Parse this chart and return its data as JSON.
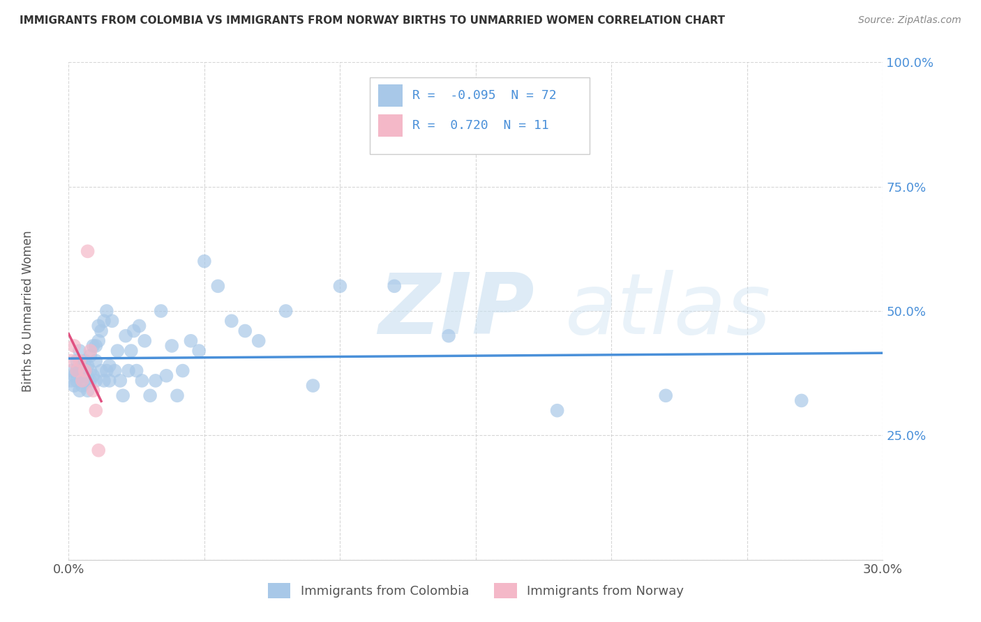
{
  "title": "IMMIGRANTS FROM COLOMBIA VS IMMIGRANTS FROM NORWAY BIRTHS TO UNMARRIED WOMEN CORRELATION CHART",
  "source": "Source: ZipAtlas.com",
  "ylabel": "Births to Unmarried Women",
  "legend_label1": "Immigrants from Colombia",
  "legend_label2": "Immigrants from Norway",
  "R1": -0.095,
  "N1": 72,
  "R2": 0.72,
  "N2": 11,
  "xlim": [
    0.0,
    0.3
  ],
  "ylim": [
    0.0,
    1.0
  ],
  "xticks": [
    0.0,
    0.05,
    0.1,
    0.15,
    0.2,
    0.25,
    0.3
  ],
  "yticks": [
    0.0,
    0.25,
    0.5,
    0.75,
    1.0
  ],
  "color_colombia": "#a8c8e8",
  "color_norway": "#f4b8c8",
  "color_trendline_colombia": "#4a90d9",
  "color_trendline_norway": "#e05080",
  "background_color": "#ffffff",
  "watermark_zip": "ZIP",
  "watermark_atlas": "atlas",
  "colombia_x": [
    0.001,
    0.001,
    0.002,
    0.002,
    0.003,
    0.003,
    0.003,
    0.004,
    0.004,
    0.004,
    0.005,
    0.005,
    0.005,
    0.006,
    0.006,
    0.006,
    0.007,
    0.007,
    0.007,
    0.008,
    0.008,
    0.008,
    0.009,
    0.009,
    0.01,
    0.01,
    0.01,
    0.011,
    0.011,
    0.012,
    0.012,
    0.013,
    0.013,
    0.014,
    0.014,
    0.015,
    0.015,
    0.016,
    0.017,
    0.018,
    0.019,
    0.02,
    0.021,
    0.022,
    0.023,
    0.024,
    0.025,
    0.026,
    0.027,
    0.028,
    0.03,
    0.032,
    0.034,
    0.036,
    0.038,
    0.04,
    0.042,
    0.045,
    0.048,
    0.05,
    0.055,
    0.06,
    0.065,
    0.07,
    0.08,
    0.09,
    0.1,
    0.12,
    0.14,
    0.18,
    0.22,
    0.27
  ],
  "colombia_y": [
    0.36,
    0.38,
    0.35,
    0.37,
    0.36,
    0.38,
    0.4,
    0.34,
    0.38,
    0.42,
    0.35,
    0.37,
    0.39,
    0.36,
    0.38,
    0.4,
    0.34,
    0.37,
    0.39,
    0.36,
    0.38,
    0.41,
    0.37,
    0.43,
    0.36,
    0.4,
    0.43,
    0.44,
    0.47,
    0.38,
    0.46,
    0.36,
    0.48,
    0.38,
    0.5,
    0.36,
    0.39,
    0.48,
    0.38,
    0.42,
    0.36,
    0.33,
    0.45,
    0.38,
    0.42,
    0.46,
    0.38,
    0.47,
    0.36,
    0.44,
    0.33,
    0.36,
    0.5,
    0.37,
    0.43,
    0.33,
    0.38,
    0.44,
    0.42,
    0.6,
    0.55,
    0.48,
    0.46,
    0.44,
    0.5,
    0.35,
    0.55,
    0.55,
    0.45,
    0.3,
    0.33,
    0.32
  ],
  "norway_x": [
    0.001,
    0.002,
    0.003,
    0.004,
    0.005,
    0.006,
    0.007,
    0.008,
    0.009,
    0.01,
    0.011
  ],
  "norway_y": [
    0.4,
    0.43,
    0.38,
    0.4,
    0.36,
    0.38,
    0.62,
    0.42,
    0.34,
    0.3,
    0.22
  ]
}
